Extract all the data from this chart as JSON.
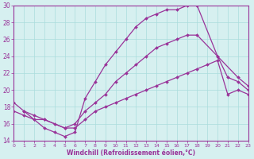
{
  "xlabel": "Windchill (Refroidissement éolien,°C)",
  "background_color": "#d6f0f0",
  "line_color": "#993399",
  "xlim": [
    0,
    23
  ],
  "ylim": [
    14,
    30
  ],
  "yticks": [
    14,
    16,
    18,
    20,
    22,
    24,
    26,
    28,
    30
  ],
  "xticks": [
    0,
    1,
    2,
    3,
    4,
    5,
    6,
    7,
    8,
    9,
    10,
    11,
    12,
    13,
    14,
    15,
    16,
    17,
    18,
    19,
    20,
    21,
    22,
    23
  ],
  "series": [
    {
      "x": [
        1,
        2,
        3,
        4,
        5,
        6,
        7,
        8,
        9,
        10,
        11,
        12,
        13,
        14,
        15,
        16,
        17,
        18,
        20,
        21,
        22,
        23
      ],
      "y": [
        17.5,
        16.5,
        15.5,
        15.0,
        14.5,
        15.0,
        19.0,
        21.0,
        23.0,
        24.5,
        26.0,
        27.5,
        28.5,
        29.0,
        29.5,
        29.5,
        30.0,
        30.0,
        24.0,
        21.5,
        21.0,
        20.0
      ]
    },
    {
      "x": [
        0,
        1,
        2,
        3,
        5,
        6,
        7,
        8,
        9,
        10,
        11,
        12,
        13,
        14,
        15,
        16,
        17,
        18,
        20,
        22,
        23
      ],
      "y": [
        18.5,
        17.5,
        17.0,
        16.5,
        15.5,
        16.0,
        17.5,
        18.5,
        19.5,
        21.0,
        22.0,
        23.0,
        24.0,
        25.0,
        25.5,
        26.0,
        26.5,
        26.5,
        24.0,
        21.5,
        20.5
      ]
    },
    {
      "x": [
        0,
        1,
        2,
        3,
        4,
        5,
        6,
        7,
        8,
        9,
        10,
        11,
        12,
        13,
        14,
        15,
        16,
        17,
        18,
        19,
        20,
        21,
        22,
        23
      ],
      "y": [
        17.5,
        17.0,
        16.5,
        16.5,
        16.0,
        15.5,
        15.5,
        16.5,
        17.5,
        18.0,
        18.5,
        19.0,
        19.5,
        20.0,
        20.5,
        21.0,
        21.5,
        22.0,
        22.5,
        23.0,
        23.5,
        19.5,
        20.0,
        19.5
      ]
    }
  ]
}
